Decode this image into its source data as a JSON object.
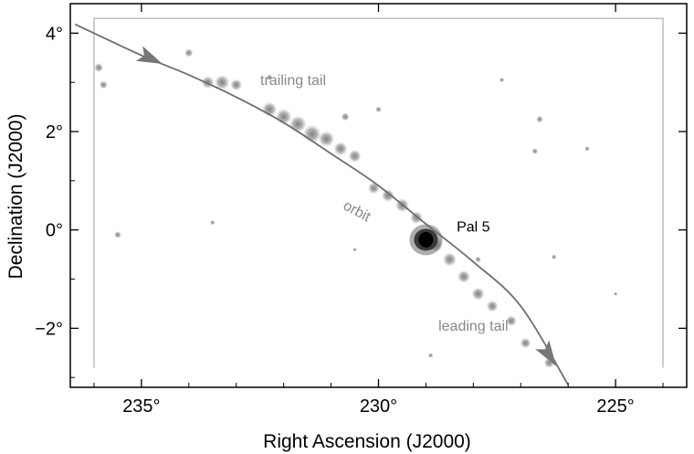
{
  "chart_data": {
    "type": "scatter",
    "title": "",
    "xlabel": "Right Ascension (J2000)",
    "ylabel": "Declination (J2000)",
    "xlim": [
      236.5,
      223.5
    ],
    "ylim": [
      -3.2,
      4.6
    ],
    "x_reversed": true,
    "xticks": [
      235,
      230,
      225
    ],
    "xtick_labels": [
      "235°",
      "230°",
      "225°"
    ],
    "yticks": [
      4,
      2,
      0,
      -2
    ],
    "ytick_labels": [
      "4°",
      "2°",
      "0°",
      "−2°"
    ],
    "grid": false,
    "footprint": {
      "ra": [
        236.0,
        224.0
      ],
      "dec": [
        -2.8,
        4.3
      ]
    },
    "orbit": {
      "name": "orbit",
      "color": "#6e6e6e",
      "points": [
        [
          236.4,
          4.18
        ],
        [
          235.0,
          3.55
        ],
        [
          234.0,
          3.15
        ],
        [
          233.0,
          2.7
        ],
        [
          232.0,
          2.18
        ],
        [
          231.0,
          1.55
        ],
        [
          230.0,
          0.9
        ],
        [
          229.0,
          0.12
        ],
        [
          228.0,
          -0.65
        ],
        [
          227.0,
          -1.55
        ],
        [
          226.0,
          -3.15
        ]
      ],
      "arrows_at": [
        [
          234.8,
          3.48
        ],
        [
          226.4,
          -2.55
        ]
      ]
    },
    "stream_blobs": [
      {
        "ra": 233.6,
        "dec": 3.0,
        "r": 0.12
      },
      {
        "ra": 233.3,
        "dec": 3.0,
        "r": 0.14
      },
      {
        "ra": 233.0,
        "dec": 2.95,
        "r": 0.11
      },
      {
        "ra": 234.0,
        "dec": 3.6,
        "r": 0.08
      },
      {
        "ra": 232.3,
        "dec": 2.45,
        "r": 0.14
      },
      {
        "ra": 232.0,
        "dec": 2.3,
        "r": 0.15
      },
      {
        "ra": 231.7,
        "dec": 2.15,
        "r": 0.16
      },
      {
        "ra": 231.4,
        "dec": 1.95,
        "r": 0.17
      },
      {
        "ra": 231.1,
        "dec": 1.85,
        "r": 0.15
      },
      {
        "ra": 230.8,
        "dec": 1.65,
        "r": 0.13
      },
      {
        "ra": 230.5,
        "dec": 1.5,
        "r": 0.12
      },
      {
        "ra": 230.1,
        "dec": 0.85,
        "r": 0.11
      },
      {
        "ra": 229.8,
        "dec": 0.7,
        "r": 0.12
      },
      {
        "ra": 229.5,
        "dec": 0.5,
        "r": 0.13
      },
      {
        "ra": 229.2,
        "dec": 0.25,
        "r": 0.12
      },
      {
        "ra": 228.8,
        "dec": -0.3,
        "r": 0.14
      },
      {
        "ra": 228.5,
        "dec": -0.6,
        "r": 0.13
      },
      {
        "ra": 228.2,
        "dec": -0.95,
        "r": 0.12
      },
      {
        "ra": 227.9,
        "dec": -1.3,
        "r": 0.12
      },
      {
        "ra": 227.6,
        "dec": -1.55,
        "r": 0.11
      },
      {
        "ra": 227.2,
        "dec": -1.85,
        "r": 0.1
      },
      {
        "ra": 226.9,
        "dec": -2.3,
        "r": 0.1
      },
      {
        "ra": 226.4,
        "dec": -2.7,
        "r": 0.1
      }
    ],
    "field_blobs": [
      {
        "ra": 235.9,
        "dec": 3.3,
        "r": 0.09
      },
      {
        "ra": 235.8,
        "dec": 2.95,
        "r": 0.08
      },
      {
        "ra": 235.5,
        "dec": -0.1,
        "r": 0.07
      },
      {
        "ra": 233.5,
        "dec": 0.15,
        "r": 0.05
      },
      {
        "ra": 232.3,
        "dec": 3.1,
        "r": 0.06
      },
      {
        "ra": 230.7,
        "dec": 2.3,
        "r": 0.08
      },
      {
        "ra": 230.0,
        "dec": 2.45,
        "r": 0.06
      },
      {
        "ra": 227.4,
        "dec": 3.05,
        "r": 0.05
      },
      {
        "ra": 226.6,
        "dec": 2.25,
        "r": 0.07
      },
      {
        "ra": 226.7,
        "dec": 1.6,
        "r": 0.06
      },
      {
        "ra": 225.6,
        "dec": 1.65,
        "r": 0.05
      },
      {
        "ra": 226.3,
        "dec": -0.55,
        "r": 0.05
      },
      {
        "ra": 225.0,
        "dec": -1.3,
        "r": 0.04
      },
      {
        "ra": 227.9,
        "dec": -0.6,
        "r": 0.06
      },
      {
        "ra": 228.9,
        "dec": -2.55,
        "r": 0.05
      },
      {
        "ra": 230.5,
        "dec": -0.4,
        "r": 0.04
      }
    ],
    "cluster": {
      "name": "Pal 5",
      "ra": 229.0,
      "dec": -0.2
    },
    "annotations": [
      {
        "text": "trailing tail",
        "ra": 231.8,
        "dec": 2.95,
        "color": "#888888",
        "rotate": 0
      },
      {
        "text": "orbit",
        "ra": 230.5,
        "dec": 0.3,
        "color": "#888888",
        "rotate": 28
      },
      {
        "text": "leading tail",
        "ra": 228.0,
        "dec": -2.05,
        "color": "#888888",
        "rotate": 0
      },
      {
        "text": "Pal 5",
        "ra": 228.0,
        "dec": -0.03,
        "color": "#000000",
        "rotate": 0
      }
    ]
  }
}
